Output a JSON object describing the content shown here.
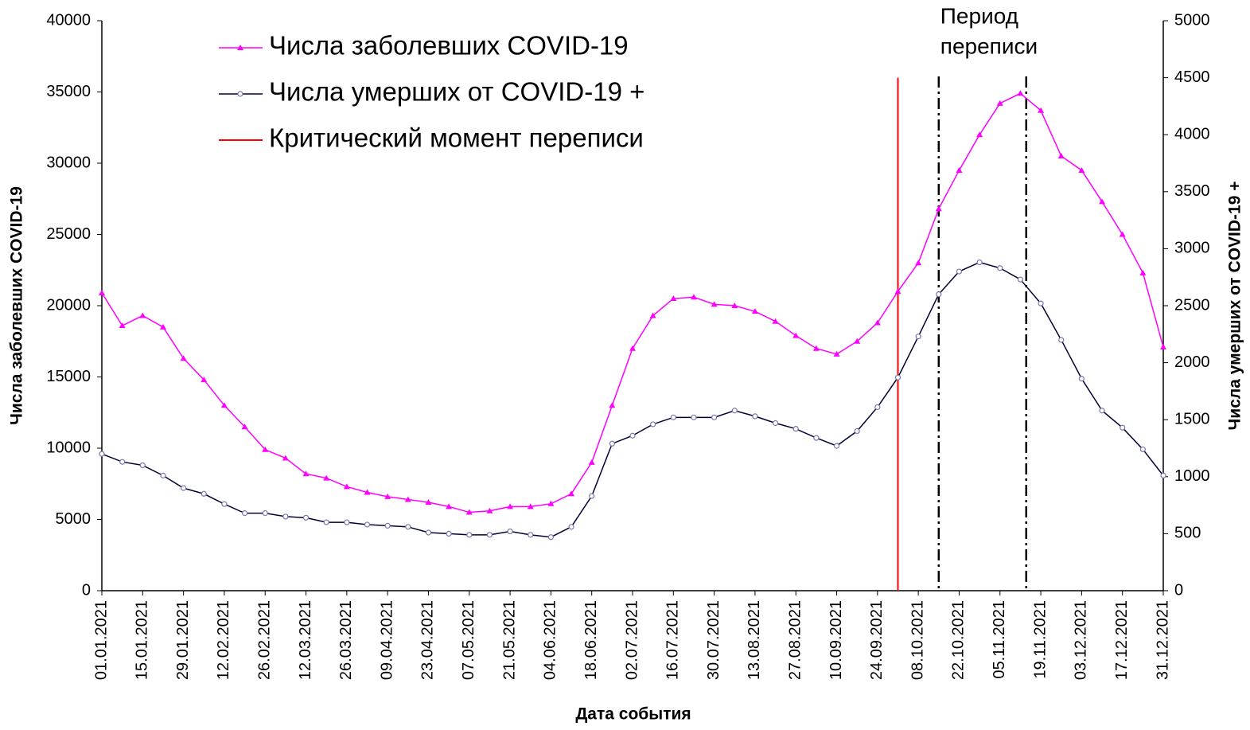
{
  "chart_data": {
    "type": "line",
    "x": [
      "01.01.2021",
      "08.01.2021",
      "15.01.2021",
      "22.01.2021",
      "29.01.2021",
      "05.02.2021",
      "12.02.2021",
      "19.02.2021",
      "26.02.2021",
      "05.03.2021",
      "12.03.2021",
      "19.03.2021",
      "26.03.2021",
      "02.04.2021",
      "09.04.2021",
      "16.04.2021",
      "23.04.2021",
      "30.04.2021",
      "07.05.2021",
      "14.05.2021",
      "21.05.2021",
      "28.05.2021",
      "04.06.2021",
      "11.06.2021",
      "18.06.2021",
      "25.06.2021",
      "02.07.2021",
      "09.07.2021",
      "16.07.2021",
      "23.07.2021",
      "30.07.2021",
      "06.08.2021",
      "13.08.2021",
      "20.08.2021",
      "27.08.2021",
      "03.09.2021",
      "10.09.2021",
      "17.09.2021",
      "24.09.2021",
      "01.10.2021",
      "08.10.2021",
      "15.10.2021",
      "22.10.2021",
      "29.10.2021",
      "05.11.2021",
      "12.11.2021",
      "19.11.2021",
      "26.11.2021",
      "03.12.2021",
      "10.12.2021",
      "17.12.2021",
      "24.12.2021",
      "31.12.2021"
    ],
    "series": [
      {
        "name": "Числа заболевших COVID-19",
        "color": "#ff00ff",
        "marker": "triangle",
        "values": [
          20900,
          18600,
          19300,
          18500,
          16300,
          14800,
          13000,
          11500,
          9900,
          9300,
          8200,
          7900,
          7300,
          6900,
          6600,
          6400,
          6200,
          5900,
          5500,
          5600,
          5900,
          5900,
          6100,
          6800,
          9000,
          13000,
          17000,
          19300,
          20500,
          20600,
          20100,
          20000,
          19600,
          18900,
          17900,
          17000,
          16600,
          17500,
          18800,
          21000,
          23000,
          26800,
          29500,
          32000,
          34200,
          34900,
          33700,
          30500,
          29500,
          27300,
          25000,
          22300,
          17100
        ]
      },
      {
        "name": "Числа умерших от COVID-19 +",
        "color": "#000033",
        "marker": "circle",
        "axis": "y2",
        "values": [
          1200,
          1130,
          1100,
          1010,
          900,
          850,
          760,
          680,
          680,
          650,
          640,
          600,
          600,
          580,
          570,
          560,
          510,
          500,
          490,
          490,
          520,
          490,
          470,
          560,
          830,
          1290,
          1360,
          1460,
          1520,
          1520,
          1520,
          1580,
          1530,
          1470,
          1420,
          1340,
          1270,
          1400,
          1610,
          1870,
          2230,
          2600,
          2800,
          2880,
          2830,
          2730,
          2520,
          2200,
          1860,
          1580,
          1430,
          1240,
          1010
        ]
      }
    ],
    "critical_line": {
      "name": "Критический момент переписи",
      "color": "#ff0000",
      "x": "01.10.2021",
      "y_top": 36000
    },
    "period": {
      "annotation": [
        "Период",
        "переписи"
      ],
      "x": [
        "15.10.2021",
        "14.11.2021"
      ]
    },
    "xlabel": "Дата события",
    "ylabel": "Числа заболевших COVID-19",
    "y2label": "Числа умерших от  COVID-19 +",
    "xticks": [
      "01.01.2021",
      "15.01.2021",
      "29.01.2021",
      "12.02.2021",
      "26.02.2021",
      "12.03.2021",
      "26.03.2021",
      "09.04.2021",
      "23.04.2021",
      "07.05.2021",
      "21.05.2021",
      "04.06.2021",
      "18.06.2021",
      "02.07.2021",
      "16.07.2021",
      "30.07.2021",
      "13.08.2021",
      "27.08.2021",
      "10.09.2021",
      "24.09.2021",
      "08.10.2021",
      "22.10.2021",
      "05.11.2021",
      "19.11.2021",
      "03.12.2021",
      "17.12.2021",
      "31.12.2021"
    ],
    "ylim": [
      0,
      40000
    ],
    "yticks": [
      0,
      5000,
      10000,
      15000,
      20000,
      25000,
      30000,
      35000,
      40000
    ],
    "y2lim": [
      0,
      5000
    ],
    "y2ticks": [
      0,
      500,
      1000,
      1500,
      2000,
      2500,
      3000,
      3500,
      4000,
      4500,
      5000
    ],
    "legend": "upper left"
  }
}
